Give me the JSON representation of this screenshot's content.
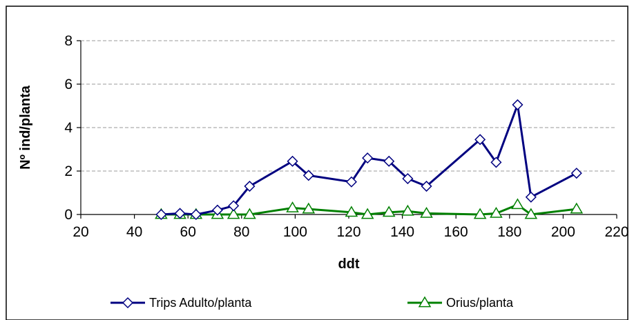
{
  "chart_data": {
    "type": "line",
    "title": "",
    "xlabel": "ddt",
    "ylabel": "Nº ind/planta",
    "xlim": [
      20,
      220
    ],
    "ylim": [
      0,
      8
    ],
    "xticks": [
      20,
      40,
      60,
      80,
      100,
      120,
      140,
      160,
      180,
      200,
      220
    ],
    "yticks": [
      0,
      2,
      4,
      6,
      8
    ],
    "grid": "horizontal dashed",
    "legend": "bottom",
    "series": [
      {
        "name": "Trips Adulto/planta",
        "color": "#000080",
        "marker": "diamond",
        "x": [
          50,
          57,
          63,
          71,
          77,
          83,
          99,
          105,
          121,
          127,
          135,
          142,
          149,
          169,
          175,
          183,
          188,
          205
        ],
        "y": [
          0.0,
          0.05,
          0.0,
          0.2,
          0.4,
          1.3,
          2.45,
          1.8,
          1.5,
          2.6,
          2.45,
          1.65,
          1.3,
          3.45,
          2.4,
          5.05,
          0.8,
          1.9
        ]
      },
      {
        "name": "Orius/planta",
        "color": "#008000",
        "marker": "triangle",
        "x": [
          50,
          57,
          63,
          71,
          77,
          83,
          99,
          105,
          121,
          127,
          135,
          142,
          149,
          169,
          175,
          183,
          188,
          205
        ],
        "y": [
          0.0,
          0.0,
          0.0,
          0.0,
          0.0,
          0.0,
          0.3,
          0.25,
          0.1,
          0.0,
          0.1,
          0.15,
          0.05,
          0.0,
          0.05,
          0.45,
          0.0,
          0.25
        ]
      }
    ]
  }
}
